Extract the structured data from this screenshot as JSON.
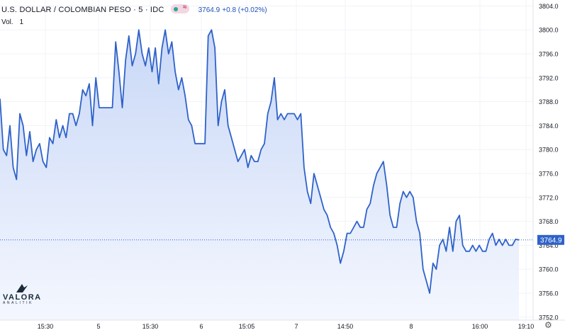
{
  "header": {
    "symbol": "U.S. DOLLAR / COLOMBIAN PESO · 5 · IDC",
    "badge_icon": "market-status-icon",
    "price": "3764.9",
    "change": "+0.8 (+0.02%)"
  },
  "volume": {
    "label": "Vol.",
    "value": "1"
  },
  "logo": {
    "name": "VALORA",
    "subtitle": "ANALITIK"
  },
  "settings_icon": "gear-icon",
  "colors": {
    "line": "#2e62c9",
    "fill_top": "#c9d8f7",
    "fill_bottom": "#f4f7fe",
    "price_label_bg": "#2e62c9",
    "vol_up": "#93d0c7",
    "vol_down": "#f2b3b3"
  },
  "chart_data": {
    "type": "line",
    "ylim": [
      3751.5,
      3805
    ],
    "y_ticks": [
      "3804.0",
      "3800.0",
      "3796.0",
      "3792.0",
      "3788.0",
      "3784.0",
      "3780.0",
      "3776.0",
      "3772.0",
      "3768.0",
      "3764.0",
      "3760.0",
      "3756.0",
      "3752.0"
    ],
    "x_ticks": [
      "15:30",
      "5",
      "15:30",
      "6",
      "15:05",
      "7",
      "14:50",
      "8",
      "16:00",
      "19:10"
    ],
    "last_price_label": "3764.9",
    "values": [
      3788.5,
      3780,
      3779,
      3784,
      3777,
      3775,
      3786,
      3784,
      3779,
      3783,
      3778,
      3780,
      3781,
      3778,
      3777,
      3782,
      3781,
      3785,
      3782,
      3784,
      3782,
      3786,
      3786,
      3784,
      3786,
      3790,
      3789,
      3791,
      3784,
      3792,
      3787,
      3787,
      3787,
      3787,
      3787,
      3798,
      3793,
      3787,
      3795,
      3799,
      3794,
      3796,
      3800,
      3796,
      3794,
      3797,
      3793,
      3797,
      3791,
      3797,
      3800,
      3796,
      3798,
      3793,
      3790,
      3792,
      3789,
      3785,
      3784,
      3781,
      3781,
      3781,
      3781,
      3799,
      3800,
      3797,
      3784,
      3788,
      3790,
      3784,
      3782,
      3780,
      3778,
      3779,
      3780,
      3777,
      3779,
      3778,
      3778,
      3780,
      3781,
      3786,
      3788,
      3792,
      3785,
      3786,
      3785,
      3786,
      3786,
      3786,
      3785,
      3786,
      3777,
      3773,
      3771,
      3776,
      3774,
      3772,
      3770,
      3769,
      3767,
      3766,
      3764,
      3761,
      3763,
      3766,
      3766,
      3767,
      3768,
      3767,
      3767,
      3770,
      3771,
      3774,
      3776,
      3777,
      3778,
      3774,
      3769,
      3767,
      3767,
      3771,
      3773,
      3772,
      3773,
      3772,
      3768,
      3766,
      3760,
      3758,
      3756,
      3761,
      3760,
      3764,
      3765,
      3763,
      3767,
      3763,
      3768,
      3769,
      3764,
      3763,
      3763,
      3764,
      3763,
      3764,
      3763,
      3763,
      3765,
      3766,
      3764,
      3765,
      3764,
      3765,
      3764,
      3764,
      3765,
      3764.9
    ]
  }
}
